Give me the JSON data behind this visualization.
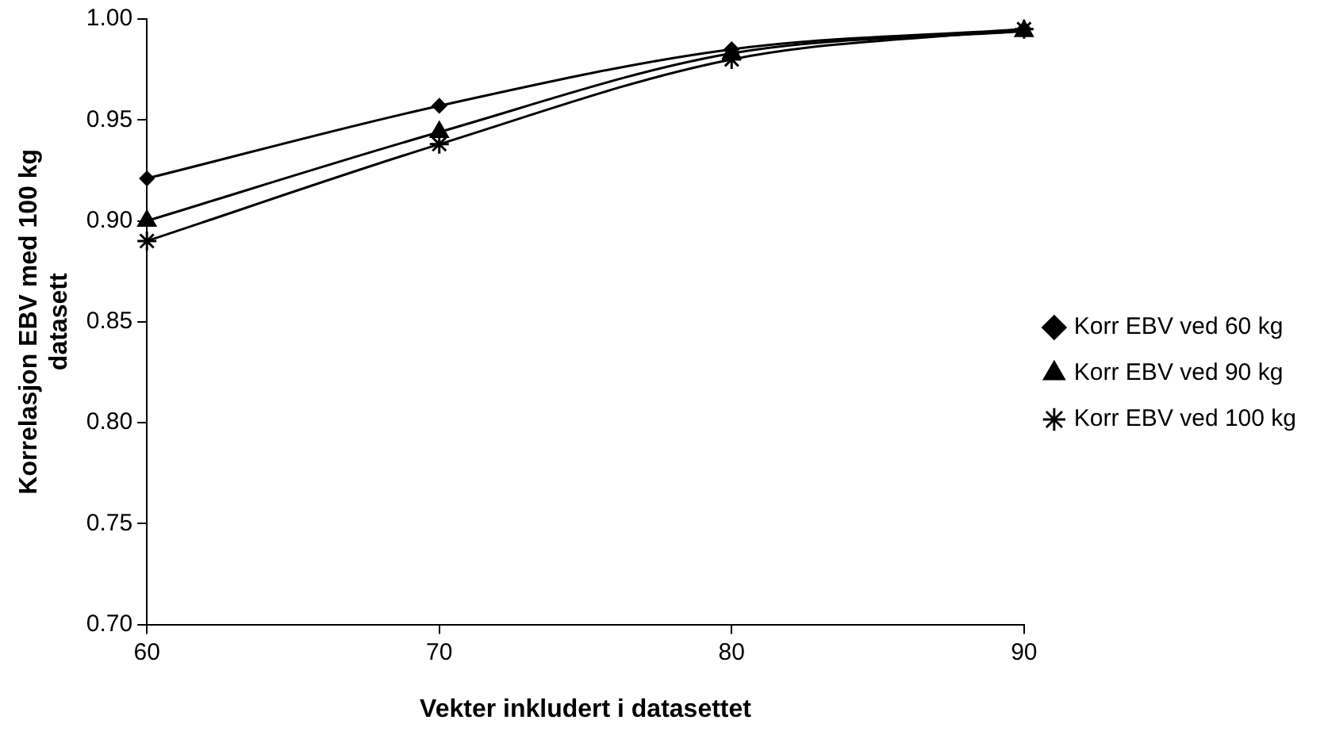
{
  "chart_data": {
    "type": "line",
    "xlabel": "Vekter inkludert i datasettet",
    "ylabel": "Korrelasjon EBV med 100 kg datasett",
    "x": [
      60,
      70,
      80,
      90
    ],
    "xlim": [
      60,
      90
    ],
    "xticks": [
      60,
      70,
      80,
      90
    ],
    "ylim": [
      0.7,
      1.0
    ],
    "yticks": [
      {
        "value": 0.7,
        "label": "0.70"
      },
      {
        "value": 0.75,
        "label": "0.75"
      },
      {
        "value": 0.8,
        "label": "0.80"
      },
      {
        "value": 0.85,
        "label": "0.85"
      },
      {
        "value": 0.9,
        "label": "0.90"
      },
      {
        "value": 0.95,
        "label": "0.95"
      },
      {
        "value": 1.0,
        "label": "1.00"
      }
    ],
    "grid": false,
    "legend": "right",
    "line_style": "solid",
    "series": [
      {
        "name": "Korr EBV ved 60 kg",
        "color": "#000000",
        "marker": "diamond",
        "values": [
          0.921,
          0.957,
          0.985,
          0.995
        ]
      },
      {
        "name": "Korr EBV ved 90 kg",
        "color": "#000000",
        "marker": "triangle",
        "values": [
          0.9,
          0.944,
          0.983,
          0.994
        ]
      },
      {
        "name": "Korr EBV ved 100 kg",
        "color": "#000000",
        "marker": "cross",
        "values": [
          0.89,
          0.938,
          0.98,
          0.995
        ]
      }
    ]
  }
}
